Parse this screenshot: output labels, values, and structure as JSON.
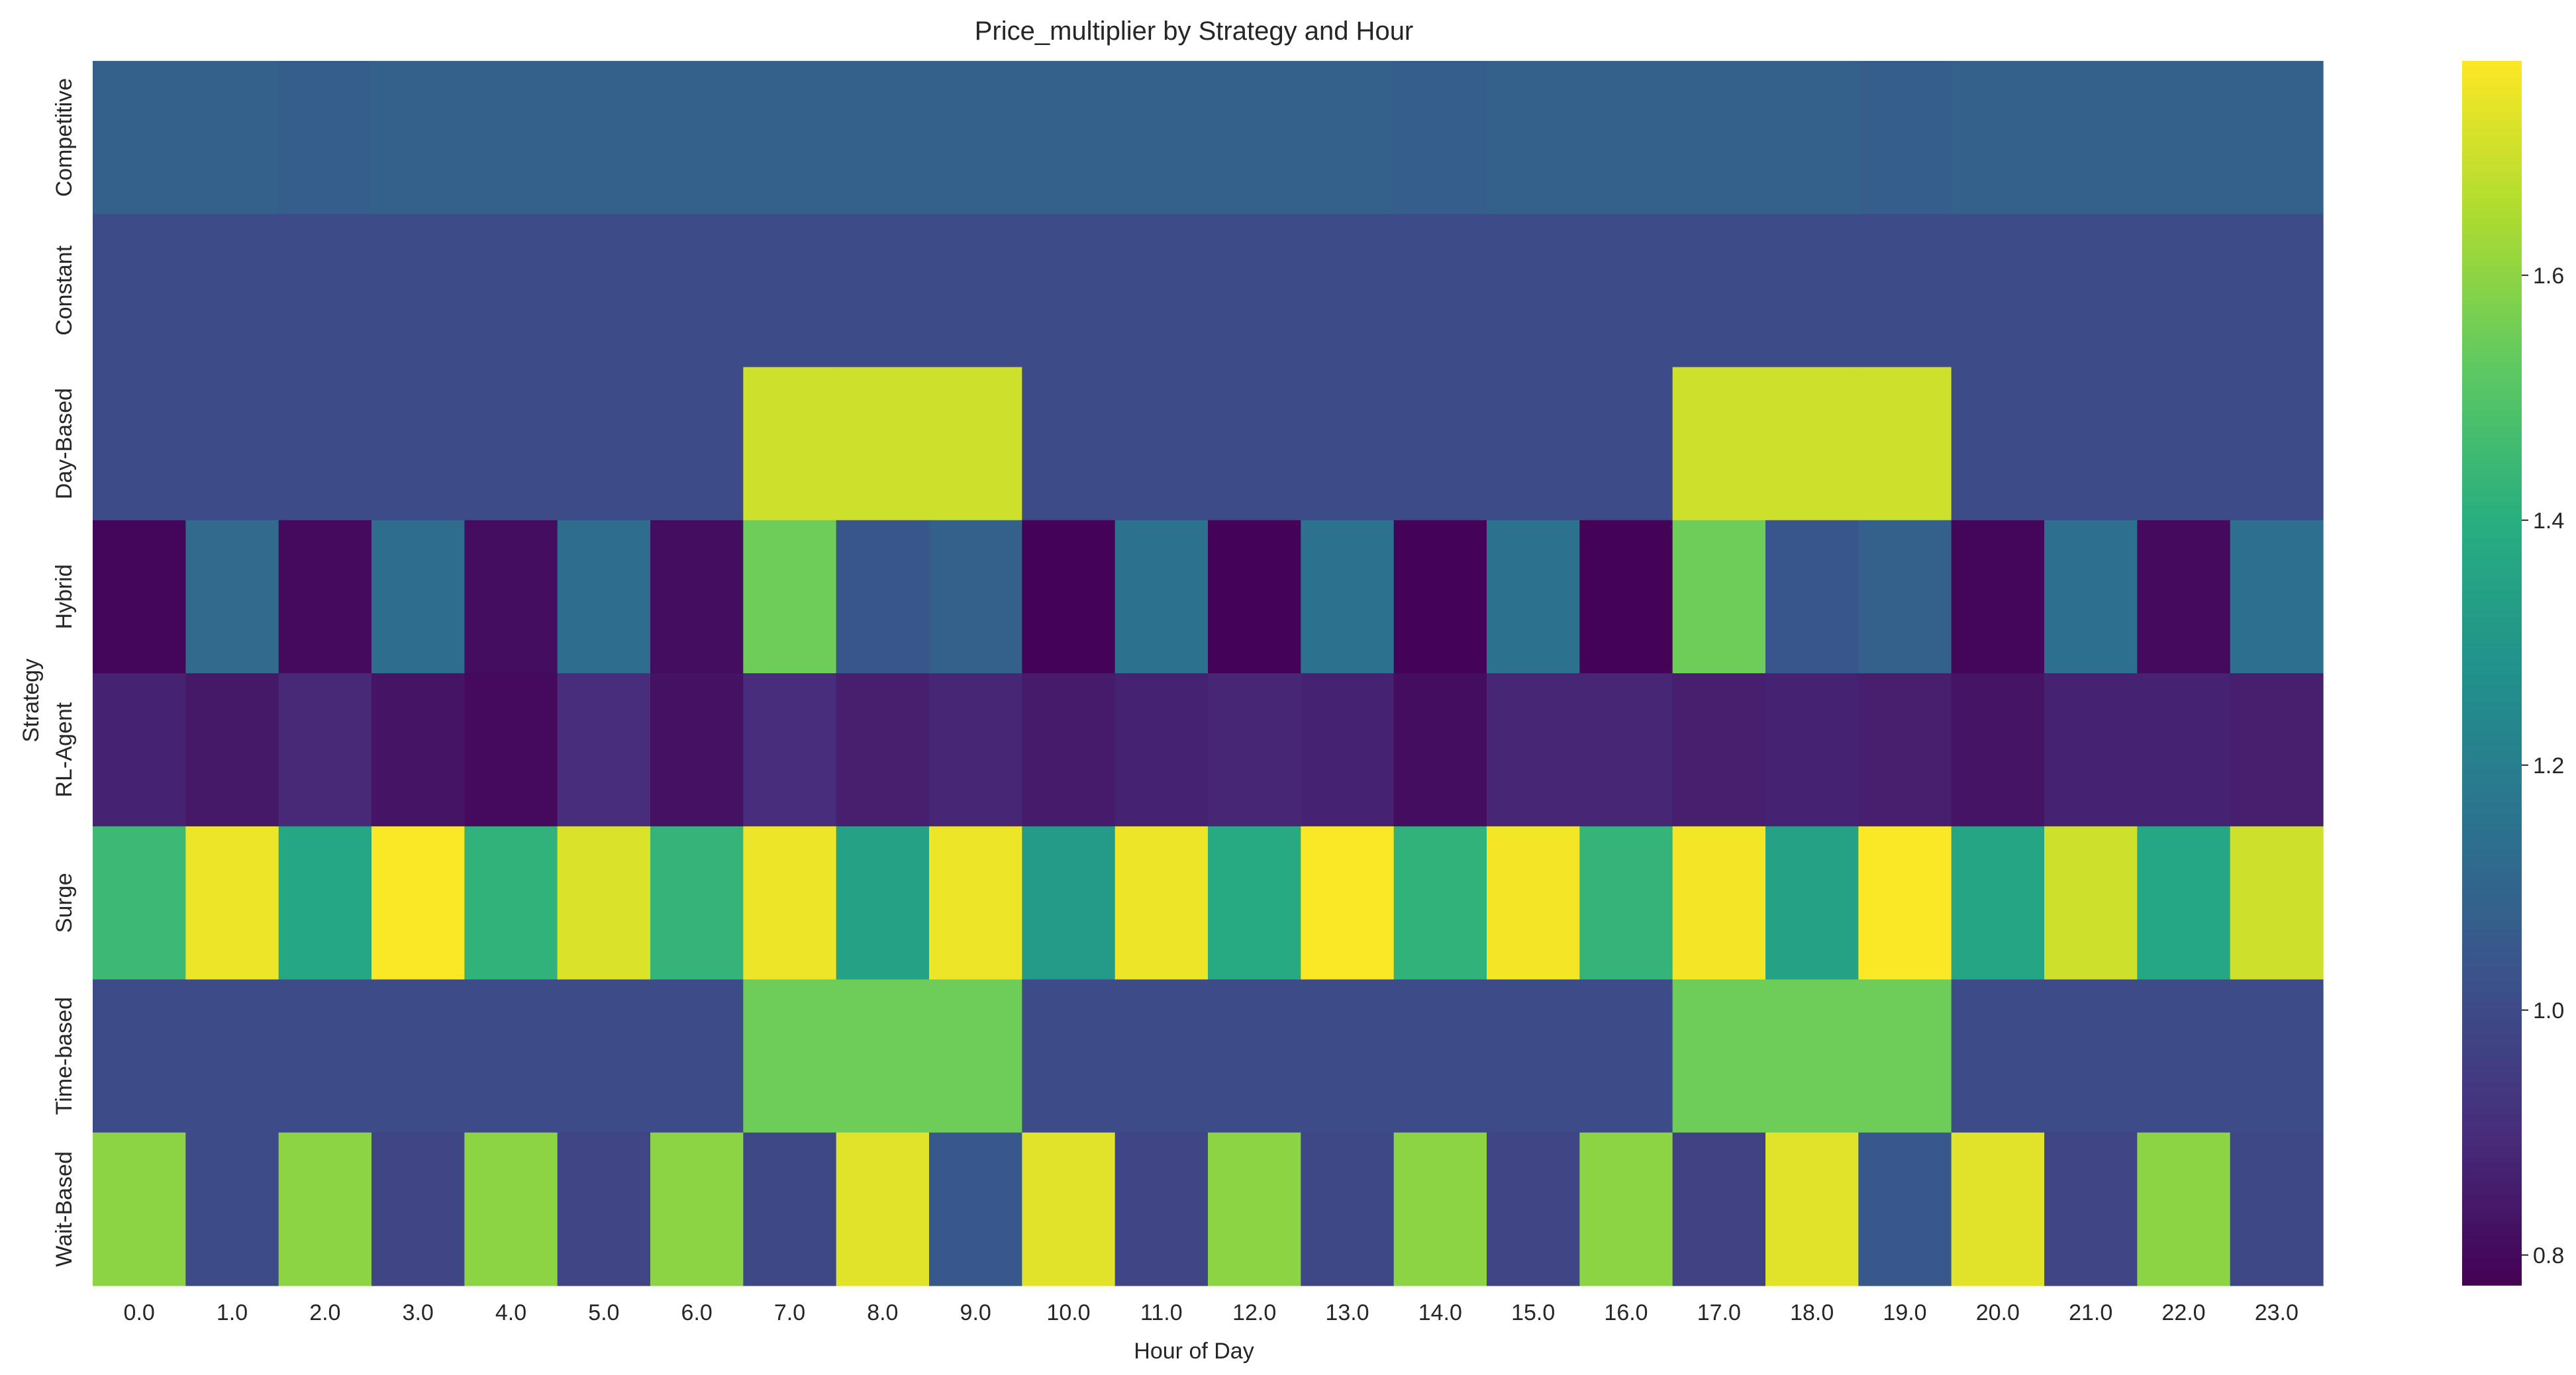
{
  "chart_data": {
    "type": "heatmap",
    "title": "Price_multiplier by Strategy and Hour",
    "xlabel": "Hour of Day",
    "ylabel": "Strategy",
    "x_categories": [
      "0.0",
      "1.0",
      "2.0",
      "3.0",
      "4.0",
      "5.0",
      "6.0",
      "7.0",
      "8.0",
      "9.0",
      "10.0",
      "11.0",
      "12.0",
      "13.0",
      "14.0",
      "15.0",
      "16.0",
      "17.0",
      "18.0",
      "19.0",
      "20.0",
      "21.0",
      "22.0",
      "23.0"
    ],
    "y_categories": [
      "Competitive",
      "Constant",
      "Day-Based",
      "Hybrid",
      "RL-Agent",
      "Surge",
      "Time-based",
      "Wait-Based"
    ],
    "colormap": "viridis",
    "vmin": 0.775,
    "vmax": 1.775,
    "colorbar_ticks": [
      "0.8",
      "1.0",
      "1.2",
      "1.4",
      "1.6"
    ],
    "values": [
      [
        1.08,
        1.08,
        1.07,
        1.08,
        1.08,
        1.08,
        1.08,
        1.08,
        1.08,
        1.08,
        1.08,
        1.08,
        1.08,
        1.08,
        1.07,
        1.08,
        1.08,
        1.08,
        1.08,
        1.07,
        1.08,
        1.08,
        1.08,
        1.08
      ],
      [
        1.0,
        1.0,
        1.0,
        1.0,
        1.0,
        1.0,
        1.0,
        1.0,
        1.0,
        1.0,
        1.0,
        1.0,
        1.0,
        1.0,
        1.0,
        1.0,
        1.0,
        1.0,
        1.0,
        1.0,
        1.0,
        1.0,
        1.0,
        1.0
      ],
      [
        1.0,
        1.0,
        1.0,
        1.0,
        1.0,
        1.0,
        1.0,
        1.7,
        1.7,
        1.7,
        1.0,
        1.0,
        1.0,
        1.0,
        1.0,
        1.0,
        1.0,
        1.7,
        1.7,
        1.7,
        1.0,
        1.0,
        1.0,
        1.0
      ],
      [
        0.79,
        1.12,
        0.8,
        1.13,
        0.81,
        1.13,
        0.81,
        1.55,
        1.04,
        1.08,
        0.78,
        1.15,
        0.78,
        1.15,
        0.78,
        1.15,
        0.78,
        1.55,
        1.04,
        1.08,
        0.79,
        1.14,
        0.8,
        1.14
      ],
      [
        0.87,
        0.84,
        0.89,
        0.83,
        0.8,
        0.9,
        0.82,
        0.9,
        0.86,
        0.88,
        0.85,
        0.87,
        0.88,
        0.87,
        0.81,
        0.88,
        0.88,
        0.86,
        0.87,
        0.86,
        0.83,
        0.87,
        0.87,
        0.86
      ],
      [
        1.45,
        1.75,
        1.37,
        1.77,
        1.42,
        1.72,
        1.43,
        1.75,
        1.35,
        1.75,
        1.32,
        1.75,
        1.38,
        1.77,
        1.42,
        1.76,
        1.43,
        1.76,
        1.35,
        1.77,
        1.36,
        1.7,
        1.37,
        1.7
      ],
      [
        1.0,
        1.0,
        1.0,
        1.0,
        1.0,
        1.0,
        1.0,
        1.55,
        1.55,
        1.55,
        1.0,
        1.0,
        1.0,
        1.0,
        1.0,
        1.0,
        1.0,
        1.55,
        1.55,
        1.55,
        1.0,
        1.0,
        1.0,
        1.0
      ],
      [
        1.6,
        1.0,
        1.6,
        0.98,
        1.6,
        0.98,
        1.6,
        0.99,
        1.73,
        1.05,
        1.73,
        0.98,
        1.6,
        0.99,
        1.6,
        0.98,
        1.6,
        0.97,
        1.73,
        1.05,
        1.73,
        0.98,
        1.6,
        0.99
      ]
    ]
  }
}
